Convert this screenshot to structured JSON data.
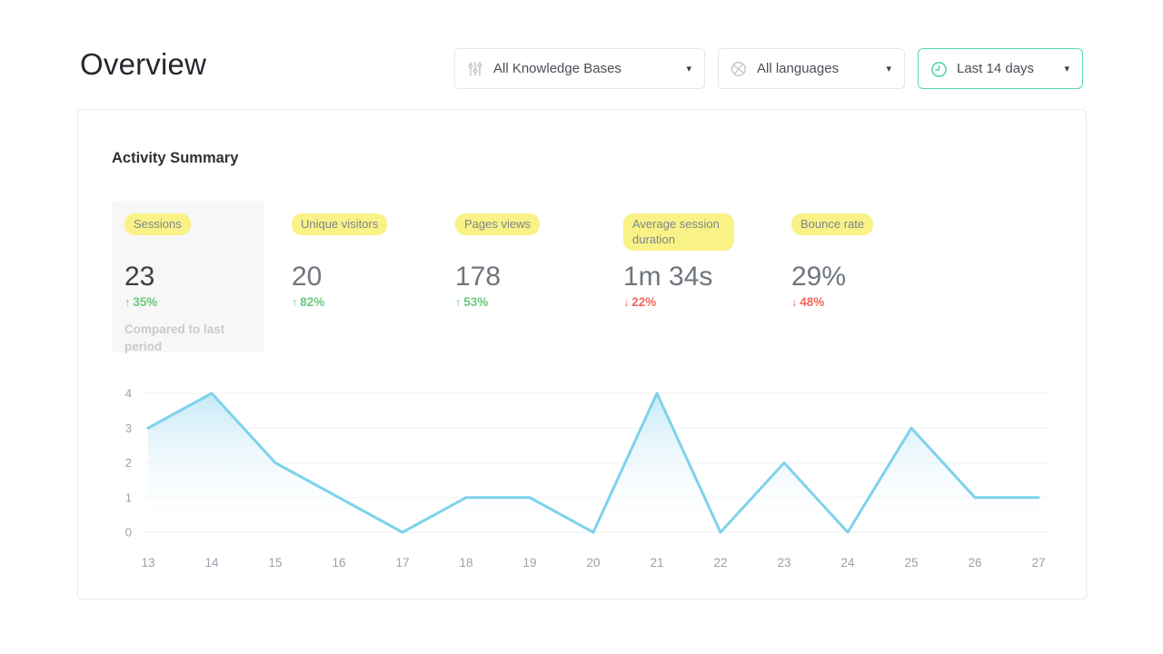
{
  "page": {
    "title": "Overview"
  },
  "glyphs": {
    "caret": "▾",
    "arrow_up": "↑",
    "arrow_down": "↓"
  },
  "filters": {
    "knowledge_bases": {
      "label": "All Knowledge Bases",
      "icon": "sliders-icon"
    },
    "languages": {
      "label": "All languages",
      "icon": "globe-icon"
    },
    "date_range": {
      "label": "Last 14 days",
      "icon": "clock-icon"
    }
  },
  "card": {
    "title": "Activity Summary",
    "metrics": [
      {
        "label": "Sessions",
        "value": "23",
        "delta": "35%",
        "direction": "up",
        "note": "Compared to last period",
        "selected": true
      },
      {
        "label": "Unique visitors",
        "value": "20",
        "delta": "82%",
        "direction": "up"
      },
      {
        "label": "Pages views",
        "value": "178",
        "delta": "53%",
        "direction": "up"
      },
      {
        "label": "Average session duration",
        "value": "1m 34s",
        "delta": "22%",
        "direction": "down"
      },
      {
        "label": "Bounce rate",
        "value": "29%",
        "delta": "48%",
        "direction": "down"
      }
    ]
  },
  "chart_data": {
    "type": "area",
    "x": [
      13,
      14,
      15,
      16,
      17,
      18,
      19,
      20,
      21,
      22,
      23,
      24,
      25,
      26,
      27
    ],
    "values": [
      3,
      4,
      2,
      1,
      0,
      1,
      1,
      0,
      4,
      0,
      2,
      0,
      3,
      1,
      1
    ],
    "title": "",
    "xlabel": "",
    "ylabel": "",
    "ylim": [
      0,
      4
    ],
    "yticks": [
      0,
      1,
      2,
      3,
      4
    ],
    "grid": true,
    "legend": "none",
    "line_color": "#7ed2ec",
    "fill_top_color": "#c6e9f6",
    "fill_bottom_color": "#ffffff",
    "tick_color": "#9aa1a8",
    "grid_color": "#f1f2f3"
  },
  "colors": {
    "accent_green": "#55dcb2",
    "highlight_yellow": "#f8f287",
    "delta_up": "#67c97a",
    "delta_down": "#f2685c",
    "selected_tile_bg": "#f7f7f7"
  }
}
